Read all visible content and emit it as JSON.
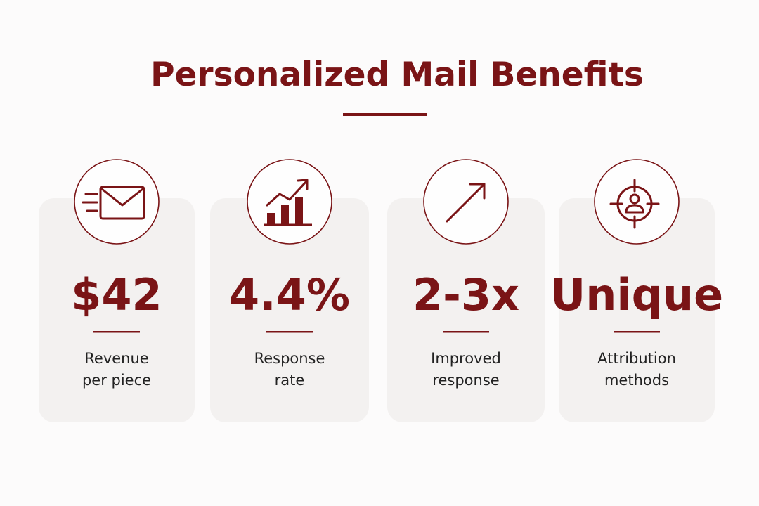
{
  "header": {
    "title": "Personalized Mail Benefits"
  },
  "cards": [
    {
      "value": "$42",
      "label": [
        "Revenue",
        "per piece"
      ]
    },
    {
      "value": "4.4%",
      "label": [
        "Response",
        "rate"
      ]
    },
    {
      "value": "2-3x",
      "label": [
        "Improved",
        "response"
      ]
    },
    {
      "value": "Unique",
      "label": [
        "Attribution",
        "methods"
      ]
    }
  ]
}
